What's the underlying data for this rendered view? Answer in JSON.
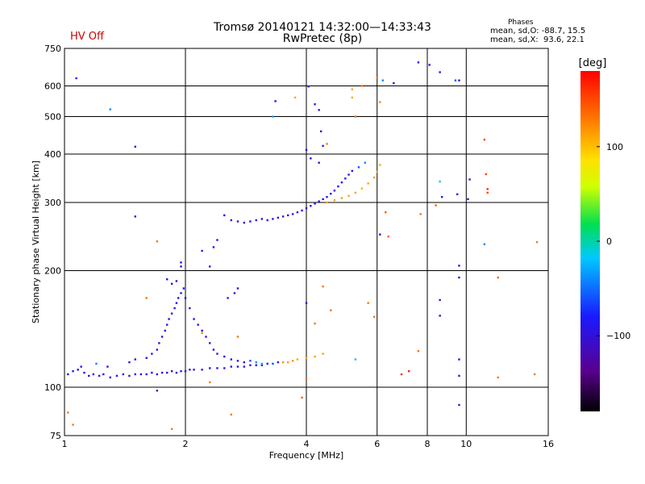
{
  "header": {
    "title_line1": "Tromsø 20140121 14:32:00—14:33:43",
    "title_line2": "RwPretec (8p)",
    "hv_status": "HV Off",
    "hv_color": "#cc0000"
  },
  "phase_stats": {
    "title": "Phases",
    "o_line": "mean, sd,O: -88.7, 15.5",
    "x_line": "mean, sd,X:  93.6, 22.1"
  },
  "chart_data": {
    "type": "scatter",
    "xlabel": "Frequency [MHz]",
    "ylabel": "Stationary phase Virtual Height [km]",
    "x_scale": "log",
    "y_scale": "log",
    "xlim": [
      1,
      16
    ],
    "ylim": [
      75,
      750
    ],
    "x_ticks": [
      1,
      2,
      4,
      6,
      8,
      10,
      16
    ],
    "y_ticks": [
      75,
      100,
      200,
      300,
      400,
      500,
      600,
      750
    ],
    "grid": true,
    "colorbar": {
      "label": "[deg]",
      "range": [
        -180,
        180
      ],
      "ticks": [
        100,
        0,
        -100
      ]
    },
    "series": [
      {
        "points": [
          [
            1.02,
            108,
            -95
          ],
          [
            1.05,
            110,
            -90
          ],
          [
            1.08,
            111,
            -80
          ],
          [
            1.1,
            113,
            -88
          ],
          [
            1.12,
            109,
            -96
          ],
          [
            1.15,
            107,
            -100
          ],
          [
            1.18,
            108,
            -92
          ],
          [
            1.22,
            107,
            -98
          ],
          [
            1.25,
            108,
            -95
          ],
          [
            1.3,
            106,
            -100
          ],
          [
            1.35,
            107,
            -98
          ],
          [
            1.4,
            108,
            -92
          ],
          [
            1.45,
            107,
            -96
          ],
          [
            1.5,
            108,
            -94
          ],
          [
            1.55,
            108,
            -98
          ],
          [
            1.6,
            108,
            -95
          ],
          [
            1.65,
            109,
            -92
          ],
          [
            1.7,
            108,
            -98
          ],
          [
            1.75,
            109,
            -95
          ],
          [
            1.8,
            109,
            -96
          ],
          [
            1.85,
            110,
            -92
          ],
          [
            1.9,
            109,
            -98
          ],
          [
            1.95,
            110,
            -95
          ],
          [
            2.0,
            110,
            -96
          ],
          [
            2.05,
            111,
            -92
          ],
          [
            2.1,
            111,
            -95
          ],
          [
            2.2,
            111,
            -96
          ],
          [
            2.3,
            112,
            -94
          ],
          [
            2.4,
            112,
            -95
          ],
          [
            2.5,
            112,
            -92
          ],
          [
            2.6,
            113,
            -90
          ],
          [
            2.7,
            113,
            -95
          ],
          [
            2.8,
            113,
            -92
          ],
          [
            2.9,
            114,
            -90
          ],
          [
            3.0,
            114,
            -93
          ],
          [
            3.1,
            114,
            -88
          ],
          [
            3.2,
            115,
            -90
          ],
          [
            3.3,
            115,
            -60
          ],
          [
            3.4,
            116,
            -90
          ],
          [
            3.5,
            116,
            120
          ],
          [
            3.6,
            116,
            115
          ],
          [
            3.7,
            117,
            118
          ],
          [
            3.8,
            118,
            110
          ],
          [
            4.0,
            119,
            115
          ],
          [
            4.2,
            120,
            112
          ],
          [
            4.4,
            122,
            110
          ]
        ]
      },
      {
        "points": [
          [
            1.2,
            115,
            -40
          ],
          [
            1.28,
            113,
            -95
          ],
          [
            1.45,
            116,
            -98
          ],
          [
            1.5,
            118,
            -92
          ],
          [
            1.6,
            119,
            -95
          ],
          [
            1.65,
            122,
            -90
          ],
          [
            1.7,
            125,
            -92
          ],
          [
            1.72,
            130,
            -95
          ],
          [
            1.75,
            135,
            -90
          ],
          [
            1.78,
            140,
            -94
          ],
          [
            1.8,
            145,
            -92
          ],
          [
            1.82,
            150,
            -96
          ],
          [
            1.85,
            155,
            -90
          ],
          [
            1.88,
            160,
            -94
          ],
          [
            1.9,
            165,
            -92
          ],
          [
            1.92,
            170,
            -95
          ],
          [
            1.95,
            175,
            -90
          ],
          [
            1.98,
            180,
            -92
          ],
          [
            1.85,
            185,
            -90
          ],
          [
            1.8,
            190,
            -94
          ],
          [
            1.9,
            188,
            -92
          ],
          [
            2.0,
            170,
            -96
          ],
          [
            2.05,
            160,
            -92
          ],
          [
            2.1,
            150,
            -95
          ],
          [
            2.15,
            145,
            -90
          ],
          [
            2.2,
            140,
            -92
          ],
          [
            2.25,
            135,
            -95
          ],
          [
            2.3,
            130,
            -92
          ],
          [
            2.35,
            125,
            -90
          ],
          [
            2.4,
            122,
            -92
          ],
          [
            2.5,
            120,
            -94
          ],
          [
            2.6,
            118,
            -92
          ],
          [
            2.7,
            117,
            -95
          ],
          [
            2.8,
            116,
            -90
          ],
          [
            2.9,
            117,
            -60
          ],
          [
            3.0,
            116,
            -40
          ],
          [
            3.1,
            115,
            -30
          ],
          [
            2.55,
            170,
            -92
          ],
          [
            2.65,
            175,
            -95
          ],
          [
            2.7,
            180,
            -90
          ],
          [
            2.3,
            205,
            -92
          ],
          [
            2.2,
            225,
            -95
          ],
          [
            2.35,
            230,
            -90
          ],
          [
            1.95,
            210,
            -92
          ],
          [
            2.4,
            240,
            -94
          ]
        ]
      },
      {
        "points": [
          [
            2.6,
            270,
            -95
          ],
          [
            2.7,
            268,
            -92
          ],
          [
            2.8,
            266,
            -96
          ],
          [
            2.9,
            268,
            -90
          ],
          [
            3.0,
            270,
            -94
          ],
          [
            3.1,
            272,
            -92
          ],
          [
            3.2,
            270,
            -95
          ],
          [
            3.3,
            272,
            -90
          ],
          [
            3.4,
            274,
            -92
          ],
          [
            3.5,
            276,
            -95
          ],
          [
            3.6,
            278,
            -90
          ],
          [
            3.7,
            280,
            -92
          ],
          [
            3.8,
            283,
            -94
          ],
          [
            3.9,
            286,
            -92
          ],
          [
            4.0,
            290,
            -95
          ],
          [
            4.1,
            294,
            -92
          ],
          [
            4.2,
            298,
            -96
          ],
          [
            4.3,
            302,
            -90
          ],
          [
            4.4,
            306,
            -94
          ],
          [
            4.5,
            310,
            -92
          ],
          [
            4.6,
            316,
            -95
          ],
          [
            4.7,
            322,
            -90
          ],
          [
            4.8,
            330,
            -92
          ],
          [
            4.9,
            338,
            -94
          ],
          [
            5.0,
            346,
            -88
          ],
          [
            5.1,
            354,
            -92
          ],
          [
            5.2,
            362,
            -90
          ],
          [
            5.4,
            370,
            -60
          ],
          [
            5.6,
            380,
            -40
          ],
          [
            4.5,
            300,
            110
          ],
          [
            4.7,
            304,
            112
          ],
          [
            4.9,
            308,
            115
          ],
          [
            5.1,
            312,
            110
          ],
          [
            5.3,
            318,
            112
          ],
          [
            5.5,
            326,
            108
          ],
          [
            5.7,
            336,
            110
          ],
          [
            5.9,
            348,
            112
          ],
          [
            6.0,
            360,
            105
          ],
          [
            6.1,
            375,
            108
          ],
          [
            4.3,
            380,
            -92
          ],
          [
            4.1,
            390,
            -95
          ],
          [
            4.0,
            410,
            -90
          ],
          [
            4.4,
            420,
            -92
          ]
        ]
      },
      {
        "points": [
          [
            1.07,
            628,
            -95
          ],
          [
            1.3,
            522,
            -40
          ],
          [
            1.5,
            418,
            -95
          ],
          [
            1.5,
            276,
            -95
          ],
          [
            1.7,
            238,
            130
          ],
          [
            2.5,
            278,
            -92
          ],
          [
            3.35,
            548,
            -95
          ],
          [
            3.3,
            500,
            -30
          ],
          [
            3.75,
            560,
            110
          ],
          [
            4.05,
            598,
            -95
          ],
          [
            4.2,
            538,
            -88
          ],
          [
            4.3,
            520,
            -92
          ],
          [
            4.35,
            458,
            -94
          ],
          [
            4.5,
            425,
            130
          ],
          [
            5.3,
            500,
            130
          ],
          [
            5.2,
            560,
            110
          ],
          [
            5.2,
            588,
            110
          ],
          [
            5.5,
            600,
            130
          ],
          [
            6.0,
            630,
            130
          ],
          [
            6.1,
            545,
            120
          ],
          [
            6.2,
            620,
            -40
          ],
          [
            6.6,
            610,
            -95
          ],
          [
            7.6,
            690,
            -95
          ],
          [
            8.1,
            680,
            -90
          ],
          [
            8.6,
            651,
            -95
          ],
          [
            9.4,
            620,
            -60
          ],
          [
            9.6,
            620,
            -95
          ],
          [
            8.6,
            340,
            -10
          ],
          [
            9.5,
            315,
            -95
          ],
          [
            10.1,
            306,
            -95
          ],
          [
            10.2,
            344,
            -95
          ],
          [
            11.1,
            436,
            150
          ],
          [
            11.2,
            355,
            150
          ],
          [
            11.3,
            325,
            160
          ],
          [
            11.3,
            318,
            150
          ],
          [
            11.1,
            234,
            -40
          ],
          [
            12.0,
            192,
            140
          ],
          [
            9.6,
            206,
            -95
          ],
          [
            9.6,
            192,
            -95
          ],
          [
            8.6,
            168,
            -90
          ],
          [
            8.6,
            153,
            -95
          ],
          [
            9.6,
            118,
            -95
          ],
          [
            9.6,
            107,
            -95
          ],
          [
            9.6,
            90,
            -95
          ],
          [
            7.2,
            110,
            165
          ],
          [
            6.9,
            108,
            160
          ],
          [
            7.6,
            124,
            130
          ],
          [
            7.7,
            280,
            130
          ],
          [
            8.4,
            295,
            140
          ],
          [
            12.0,
            106,
            130
          ],
          [
            14.8,
            108,
            130
          ],
          [
            15.0,
            237,
            130
          ],
          [
            6.4,
            245,
            140
          ],
          [
            6.3,
            283,
            140
          ],
          [
            6.1,
            248,
            -95
          ],
          [
            4.0,
            105,
            130
          ],
          [
            3.9,
            94,
            140
          ],
          [
            4.0,
            165,
            -95
          ],
          [
            4.4,
            182,
            130
          ],
          [
            4.6,
            158,
            130
          ],
          [
            4.2,
            146,
            130
          ],
          [
            5.3,
            118,
            -20
          ],
          [
            5.7,
            165,
            130
          ],
          [
            5.9,
            152,
            130
          ],
          [
            1.02,
            86,
            130
          ],
          [
            1.05,
            80,
            130
          ],
          [
            1.85,
            78,
            130
          ],
          [
            2.3,
            103,
            130
          ],
          [
            2.6,
            85,
            130
          ],
          [
            2.7,
            135,
            130
          ],
          [
            2.2,
            138,
            120
          ],
          [
            1.6,
            170,
            130
          ],
          [
            1.95,
            205,
            -95
          ],
          [
            1.7,
            98,
            -95
          ],
          [
            8.7,
            310,
            -95
          ]
        ]
      }
    ]
  }
}
